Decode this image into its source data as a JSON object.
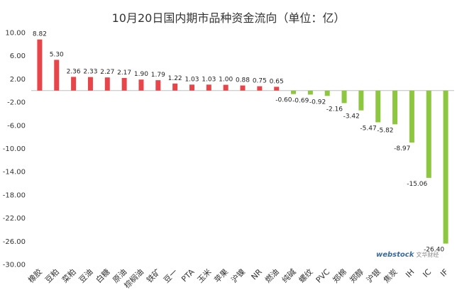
{
  "chart_data": {
    "type": "bar",
    "title": "10月20日国内期市品种资金流向（单位：亿）",
    "categories": [
      "橡胶",
      "豆粕",
      "菜粕",
      "豆油",
      "白糖",
      "原油",
      "棕榈油",
      "铁矿",
      "豆一",
      "PTA",
      "玉米",
      "苹果",
      "沪镍",
      "NR",
      "燃油",
      "纯碱",
      "螺纹",
      "PVC",
      "郑棉",
      "郑醇",
      "沪银",
      "焦炭",
      "IH",
      "IC",
      "IF"
    ],
    "values": [
      8.82,
      5.3,
      2.36,
      2.33,
      2.27,
      2.17,
      1.9,
      1.79,
      1.22,
      1.03,
      1.03,
      1.0,
      0.88,
      0.75,
      0.65,
      -0.6,
      -0.69,
      -0.92,
      -2.16,
      -3.42,
      -5.47,
      -5.82,
      -8.97,
      -15.06,
      -26.4
    ],
    "value_labels": [
      "8.82",
      "5.30",
      "2.36",
      "2.33",
      "2.27",
      "2.17",
      "1.90",
      "1.79",
      "1.22",
      "1.03",
      "1.03",
      "1.00",
      "0.88",
      "0.75",
      "0.65",
      "-0.60",
      "-0.69",
      "-0.92",
      "-2.16",
      "-3.42",
      "-5.47",
      "-5.82",
      "-8.97",
      "-15.06",
      "-26.40"
    ],
    "y_ticks": [
      "10.00",
      "6.00",
      "2.00",
      "-2.00",
      "-6.00",
      "-10.00",
      "-14.00",
      "-18.00",
      "-22.00",
      "-26.00",
      "-30.00"
    ],
    "y_tick_values": [
      10,
      6,
      2,
      -2,
      -6,
      -10,
      -14,
      -18,
      -22,
      -26,
      -30
    ],
    "ylim": [
      -30,
      10
    ],
    "xlabel": "",
    "ylabel": "",
    "grid": false,
    "legend": "none",
    "colors": {
      "positive": "#e8454a",
      "negative": "#8dc63f",
      "axis": "#bfbfbf"
    }
  },
  "watermark": {
    "brand": "webstock",
    "brand_cn": "文华财经"
  }
}
